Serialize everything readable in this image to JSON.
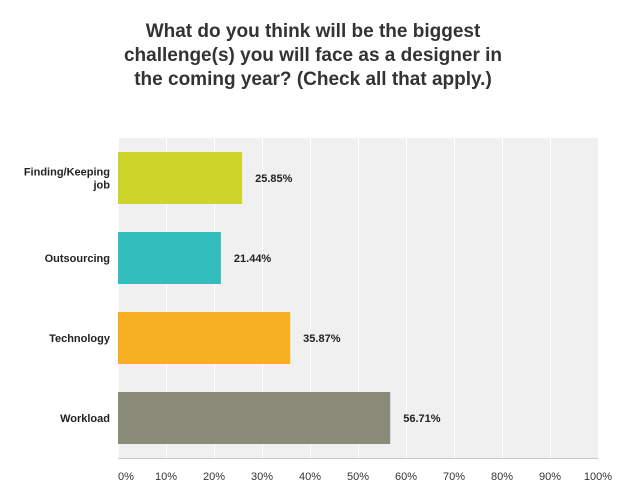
{
  "title_lines": [
    "What do you think will be the biggest",
    "challenge(s) you will face as a designer in",
    "the coming year? (Check all that apply.)"
  ],
  "chart_data": {
    "type": "bar",
    "orientation": "horizontal",
    "title": "What do you think will be the biggest challenge(s) you will face as a designer in the coming year? (Check all that apply.)",
    "categories": [
      [
        "Finding/Keeping",
        "job"
      ],
      [
        "Outsourcing"
      ],
      [
        "Technology"
      ],
      [
        "Workload"
      ]
    ],
    "values": [
      25.85,
      21.44,
      35.87,
      56.71
    ],
    "value_labels": [
      "25.85%",
      "21.44%",
      "35.87%",
      "56.71%"
    ],
    "colors": [
      "#cdd42a",
      "#33bdbd",
      "#f7b021",
      "#8a8b79"
    ],
    "xlim": [
      0,
      100
    ],
    "xticks": [
      0,
      10,
      20,
      30,
      40,
      50,
      60,
      70,
      80,
      90,
      100
    ],
    "xtick_labels": [
      "0%",
      "10%",
      "20%",
      "30%",
      "40%",
      "50%",
      "60%",
      "70%",
      "80%",
      "90%",
      "100%"
    ],
    "grid": true,
    "plot_background": "#f0f0f0"
  }
}
